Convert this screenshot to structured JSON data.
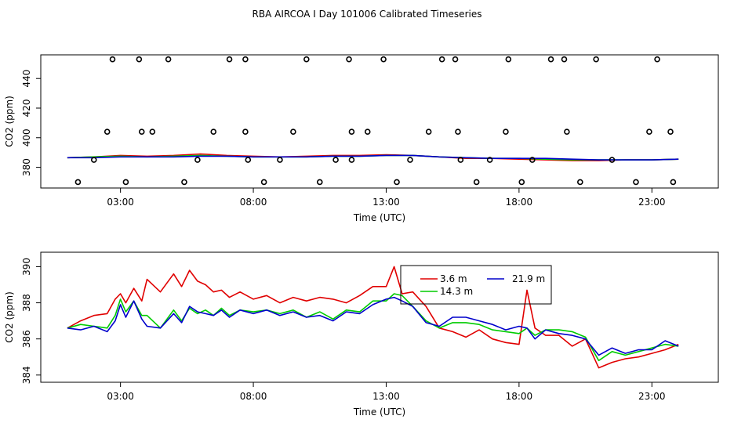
{
  "title": "RBA AIRCOA I  Day 101006  Calibrated Timeseries",
  "colors": {
    "s1": "#e00000",
    "s2": "#00cc00",
    "s3": "#0000cc",
    "frame": "#000000"
  },
  "chart_data": [
    {
      "type": "line",
      "xlabel": "Time (UTC)",
      "ylabel": "CO2 (ppm)",
      "xlim": [
        0,
        25.5
      ],
      "ylim": [
        366,
        456
      ],
      "xticks": [
        3,
        8,
        13,
        18,
        23
      ],
      "xtick_labels": [
        "03:00",
        "08:00",
        "13:00",
        "18:00",
        "23:00"
      ],
      "yticks": [
        380,
        400,
        420,
        440
      ],
      "ytick_labels": [
        "380",
        "400",
        "420",
        "440"
      ],
      "grid": false,
      "series": [
        {
          "color": "#e00000",
          "x": [
            1,
            2,
            3,
            4,
            5,
            6,
            7,
            8,
            9,
            10,
            11,
            12,
            13,
            14,
            15,
            16,
            17,
            18,
            19,
            20,
            21,
            22,
            23,
            24
          ],
          "values": [
            386.5,
            387,
            388,
            387.5,
            388,
            389,
            388,
            387.5,
            387,
            387.5,
            388,
            388,
            388.5,
            388,
            387,
            386,
            386,
            385.5,
            385,
            384.5,
            384.5,
            385,
            385,
            385.5
          ]
        },
        {
          "color": "#00cc00",
          "x": [
            1,
            2,
            3,
            4,
            5,
            6,
            7,
            8,
            9,
            10,
            11,
            12,
            13,
            14,
            15,
            16,
            17,
            18,
            19,
            20,
            21,
            22,
            23,
            24
          ],
          "values": [
            386.5,
            387,
            387.5,
            387,
            387.5,
            388,
            387.5,
            387,
            387,
            387,
            387.5,
            387.5,
            388,
            388,
            387,
            386.5,
            386,
            386,
            385.5,
            385,
            385,
            385,
            385,
            385.5
          ]
        },
        {
          "color": "#0000cc",
          "x": [
            1,
            2,
            3,
            4,
            5,
            6,
            7,
            8,
            9,
            10,
            11,
            12,
            13,
            14,
            15,
            16,
            17,
            18,
            19,
            20,
            21,
            22,
            23,
            24
          ],
          "values": [
            386.5,
            386.5,
            387,
            387,
            387,
            387.5,
            387.5,
            387,
            387,
            387,
            387.5,
            387.5,
            388,
            388,
            387,
            386.5,
            386,
            386,
            386,
            385.5,
            385,
            385,
            385,
            385.5
          ]
        }
      ],
      "markers": {
        "style": "open-circle",
        "x": [
          1.4,
          2.0,
          2.7,
          3.2,
          3.7,
          3.8,
          2.5,
          4.2,
          4.8,
          5.4,
          6.5,
          5.9,
          7.1,
          7.7,
          7.7,
          7.8,
          8.4,
          9.0,
          9.5,
          10.0,
          10.5,
          11.1,
          11.6,
          11.7,
          11.7,
          12.3,
          12.9,
          13.4,
          13.9,
          14.6,
          15.1,
          15.6,
          15.7,
          15.8,
          16.4,
          16.9,
          17.5,
          17.6,
          18.1,
          18.5,
          19.2,
          19.7,
          19.8,
          20.3,
          20.9,
          21.5,
          22.4,
          22.9,
          23.2,
          23.7,
          23.8
        ],
        "values": [
          370,
          385,
          453,
          370,
          453,
          404,
          404,
          404,
          453,
          370,
          404,
          385,
          453,
          453,
          404,
          385,
          370,
          385,
          404,
          453,
          370,
          385,
          453,
          404,
          385,
          404,
          453,
          370,
          385,
          404,
          453,
          453,
          404,
          385,
          370,
          385,
          404,
          453,
          370,
          385,
          453,
          453,
          404,
          370,
          453,
          385,
          370,
          404,
          453,
          404,
          370
        ]
      }
    },
    {
      "type": "line",
      "xlabel": "Time (UTC)",
      "ylabel": "CO2 (ppm)",
      "xlim": [
        0,
        25.5
      ],
      "ylim": [
        383.6,
        390.8
      ],
      "xticks": [
        3,
        8,
        13,
        18,
        23
      ],
      "xtick_labels": [
        "03:00",
        "08:00",
        "13:00",
        "18:00",
        "23:00"
      ],
      "yticks": [
        384,
        386,
        388,
        390
      ],
      "ytick_labels": [
        "384",
        "386",
        "388",
        "390"
      ],
      "grid": false,
      "legend": {
        "position": "top-center",
        "labels": [
          "3.6 m",
          "14.3 m",
          "21.9 m"
        ]
      },
      "series": [
        {
          "name": "3.6 m",
          "color": "#e00000",
          "x": [
            1.0,
            1.5,
            2.0,
            2.5,
            2.8,
            3.0,
            3.2,
            3.5,
            3.8,
            4.0,
            4.5,
            5.0,
            5.3,
            5.6,
            5.9,
            6.2,
            6.5,
            6.8,
            7.1,
            7.5,
            8.0,
            8.5,
            9.0,
            9.5,
            10.0,
            10.5,
            11.0,
            11.5,
            12.0,
            12.5,
            13.0,
            13.3,
            13.6,
            14.0,
            14.5,
            15.0,
            15.5,
            16.0,
            16.5,
            17.0,
            17.5,
            18.0,
            18.3,
            18.6,
            19.0,
            19.5,
            20.0,
            20.5,
            21.0,
            21.5,
            22.0,
            22.5,
            23.0,
            23.5,
            24.0
          ],
          "values": [
            386.6,
            387.0,
            387.3,
            387.4,
            388.2,
            388.5,
            388.0,
            388.8,
            388.1,
            389.3,
            388.6,
            389.6,
            388.9,
            389.8,
            389.2,
            389.0,
            388.6,
            388.7,
            388.3,
            388.6,
            388.2,
            388.4,
            388.0,
            388.3,
            388.1,
            388.3,
            388.2,
            388.0,
            388.4,
            388.9,
            388.9,
            390.0,
            388.5,
            388.6,
            387.8,
            386.6,
            386.4,
            386.1,
            386.5,
            386.0,
            385.8,
            385.7,
            388.7,
            386.6,
            386.2,
            386.2,
            385.6,
            386.0,
            384.4,
            384.7,
            384.9,
            385.0,
            385.2,
            385.4,
            385.7
          ]
        },
        {
          "name": "14.3 m",
          "color": "#00cc00",
          "x": [
            1.0,
            1.5,
            2.0,
            2.5,
            2.8,
            3.0,
            3.2,
            3.5,
            3.8,
            4.0,
            4.5,
            5.0,
            5.3,
            5.6,
            5.9,
            6.2,
            6.5,
            6.8,
            7.1,
            7.5,
            8.0,
            8.5,
            9.0,
            9.5,
            10.0,
            10.5,
            11.0,
            11.5,
            12.0,
            12.5,
            13.0,
            13.3,
            13.6,
            14.0,
            14.5,
            15.0,
            15.5,
            16.0,
            16.5,
            17.0,
            17.5,
            18.0,
            18.3,
            18.6,
            19.0,
            19.5,
            20.0,
            20.5,
            21.0,
            21.5,
            22.0,
            22.5,
            23.0,
            23.5,
            24.0
          ],
          "values": [
            386.6,
            386.8,
            386.7,
            386.6,
            387.3,
            388.2,
            387.5,
            388.1,
            387.3,
            387.3,
            386.6,
            387.6,
            387.0,
            387.7,
            387.4,
            387.6,
            387.3,
            387.7,
            387.3,
            387.6,
            387.5,
            387.6,
            387.4,
            387.6,
            387.2,
            387.5,
            387.1,
            387.6,
            387.5,
            388.1,
            388.1,
            388.5,
            388.4,
            387.8,
            387.0,
            386.6,
            386.9,
            386.9,
            386.8,
            386.5,
            386.4,
            386.3,
            386.6,
            386.2,
            386.5,
            386.5,
            386.4,
            386.1,
            384.8,
            385.3,
            385.1,
            385.3,
            385.5,
            385.7,
            385.6
          ]
        },
        {
          "name": "21.9 m",
          "color": "#0000cc",
          "x": [
            1.0,
            1.5,
            2.0,
            2.5,
            2.8,
            3.0,
            3.2,
            3.5,
            3.8,
            4.0,
            4.5,
            5.0,
            5.3,
            5.6,
            5.9,
            6.2,
            6.5,
            6.8,
            7.1,
            7.5,
            8.0,
            8.5,
            9.0,
            9.5,
            10.0,
            10.5,
            11.0,
            11.5,
            12.0,
            12.5,
            13.0,
            13.3,
            13.6,
            14.0,
            14.5,
            15.0,
            15.5,
            16.0,
            16.5,
            17.0,
            17.5,
            18.0,
            18.3,
            18.6,
            19.0,
            19.5,
            20.0,
            20.5,
            21.0,
            21.5,
            22.0,
            22.5,
            23.0,
            23.5,
            24.0
          ],
          "values": [
            386.6,
            386.5,
            386.7,
            386.4,
            387.0,
            387.9,
            387.2,
            388.1,
            387.1,
            386.7,
            386.6,
            387.4,
            386.9,
            387.8,
            387.5,
            387.4,
            387.3,
            387.6,
            387.2,
            387.6,
            387.4,
            387.6,
            387.3,
            387.5,
            387.2,
            387.3,
            387.0,
            387.5,
            387.4,
            387.9,
            388.2,
            388.3,
            388.1,
            387.8,
            386.9,
            386.7,
            387.2,
            387.2,
            387.0,
            386.8,
            386.5,
            386.7,
            386.6,
            386.0,
            386.5,
            386.3,
            386.2,
            386.0,
            385.1,
            385.5,
            385.2,
            385.4,
            385.4,
            385.9,
            385.6
          ]
        }
      ]
    }
  ]
}
